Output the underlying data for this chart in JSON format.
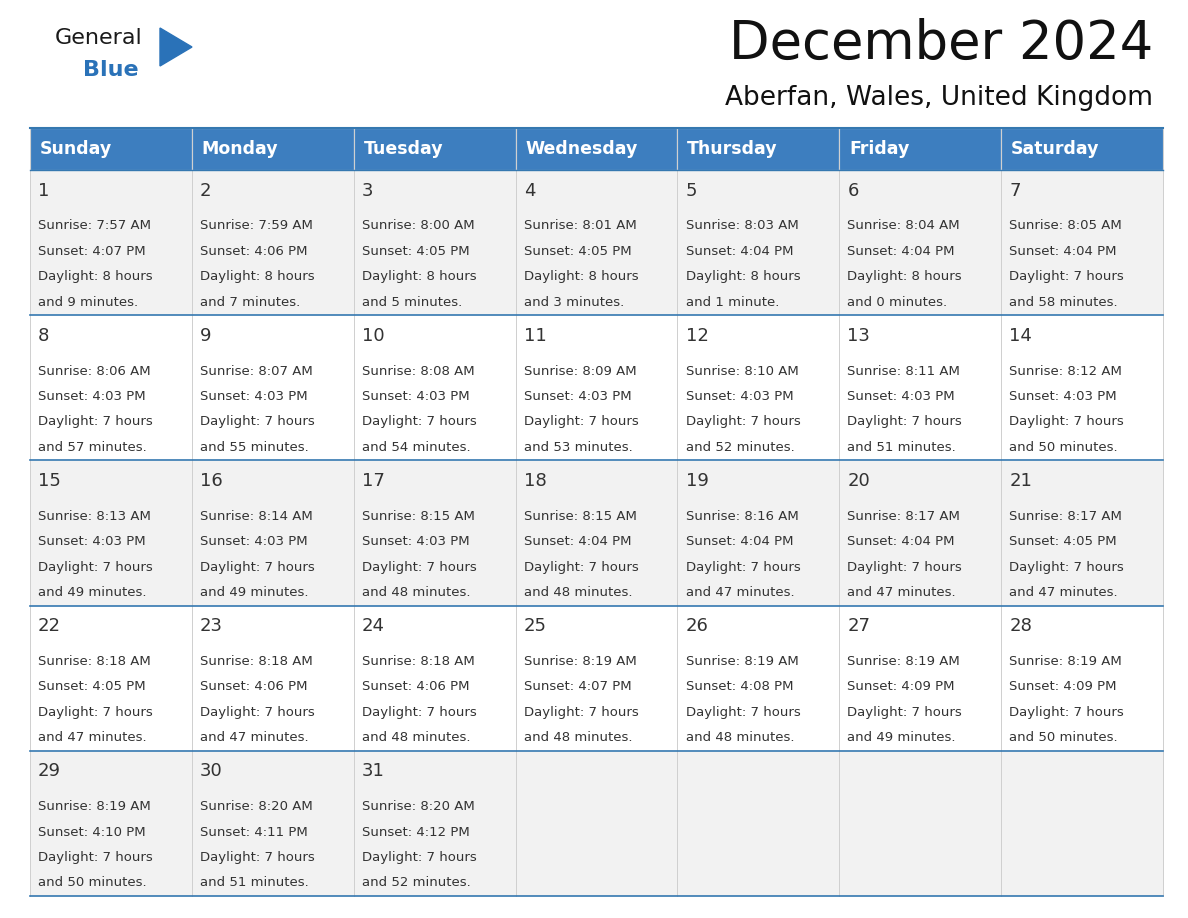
{
  "title": "December 2024",
  "subtitle": "Aberfan, Wales, United Kingdom",
  "header_color": "#3d7ebf",
  "header_text_color": "#ffffff",
  "row_bg_odd": "#f2f2f2",
  "row_bg_even": "#ffffff",
  "text_color": "#333333",
  "divider_color": "#3578b0",
  "day_headers": [
    "Sunday",
    "Monday",
    "Tuesday",
    "Wednesday",
    "Thursday",
    "Friday",
    "Saturday"
  ],
  "days": [
    {
      "date": 1,
      "col": 0,
      "row": 0,
      "sunrise": "7:57 AM",
      "sunset": "4:07 PM",
      "daylight_line1": "Daylight: 8 hours",
      "daylight_line2": "and 9 minutes."
    },
    {
      "date": 2,
      "col": 1,
      "row": 0,
      "sunrise": "7:59 AM",
      "sunset": "4:06 PM",
      "daylight_line1": "Daylight: 8 hours",
      "daylight_line2": "and 7 minutes."
    },
    {
      "date": 3,
      "col": 2,
      "row": 0,
      "sunrise": "8:00 AM",
      "sunset": "4:05 PM",
      "daylight_line1": "Daylight: 8 hours",
      "daylight_line2": "and 5 minutes."
    },
    {
      "date": 4,
      "col": 3,
      "row": 0,
      "sunrise": "8:01 AM",
      "sunset": "4:05 PM",
      "daylight_line1": "Daylight: 8 hours",
      "daylight_line2": "and 3 minutes."
    },
    {
      "date": 5,
      "col": 4,
      "row": 0,
      "sunrise": "8:03 AM",
      "sunset": "4:04 PM",
      "daylight_line1": "Daylight: 8 hours",
      "daylight_line2": "and 1 minute."
    },
    {
      "date": 6,
      "col": 5,
      "row": 0,
      "sunrise": "8:04 AM",
      "sunset": "4:04 PM",
      "daylight_line1": "Daylight: 8 hours",
      "daylight_line2": "and 0 minutes."
    },
    {
      "date": 7,
      "col": 6,
      "row": 0,
      "sunrise": "8:05 AM",
      "sunset": "4:04 PM",
      "daylight_line1": "Daylight: 7 hours",
      "daylight_line2": "and 58 minutes."
    },
    {
      "date": 8,
      "col": 0,
      "row": 1,
      "sunrise": "8:06 AM",
      "sunset": "4:03 PM",
      "daylight_line1": "Daylight: 7 hours",
      "daylight_line2": "and 57 minutes."
    },
    {
      "date": 9,
      "col": 1,
      "row": 1,
      "sunrise": "8:07 AM",
      "sunset": "4:03 PM",
      "daylight_line1": "Daylight: 7 hours",
      "daylight_line2": "and 55 minutes."
    },
    {
      "date": 10,
      "col": 2,
      "row": 1,
      "sunrise": "8:08 AM",
      "sunset": "4:03 PM",
      "daylight_line1": "Daylight: 7 hours",
      "daylight_line2": "and 54 minutes."
    },
    {
      "date": 11,
      "col": 3,
      "row": 1,
      "sunrise": "8:09 AM",
      "sunset": "4:03 PM",
      "daylight_line1": "Daylight: 7 hours",
      "daylight_line2": "and 53 minutes."
    },
    {
      "date": 12,
      "col": 4,
      "row": 1,
      "sunrise": "8:10 AM",
      "sunset": "4:03 PM",
      "daylight_line1": "Daylight: 7 hours",
      "daylight_line2": "and 52 minutes."
    },
    {
      "date": 13,
      "col": 5,
      "row": 1,
      "sunrise": "8:11 AM",
      "sunset": "4:03 PM",
      "daylight_line1": "Daylight: 7 hours",
      "daylight_line2": "and 51 minutes."
    },
    {
      "date": 14,
      "col": 6,
      "row": 1,
      "sunrise": "8:12 AM",
      "sunset": "4:03 PM",
      "daylight_line1": "Daylight: 7 hours",
      "daylight_line2": "and 50 minutes."
    },
    {
      "date": 15,
      "col": 0,
      "row": 2,
      "sunrise": "8:13 AM",
      "sunset": "4:03 PM",
      "daylight_line1": "Daylight: 7 hours",
      "daylight_line2": "and 49 minutes."
    },
    {
      "date": 16,
      "col": 1,
      "row": 2,
      "sunrise": "8:14 AM",
      "sunset": "4:03 PM",
      "daylight_line1": "Daylight: 7 hours",
      "daylight_line2": "and 49 minutes."
    },
    {
      "date": 17,
      "col": 2,
      "row": 2,
      "sunrise": "8:15 AM",
      "sunset": "4:03 PM",
      "daylight_line1": "Daylight: 7 hours",
      "daylight_line2": "and 48 minutes."
    },
    {
      "date": 18,
      "col": 3,
      "row": 2,
      "sunrise": "8:15 AM",
      "sunset": "4:04 PM",
      "daylight_line1": "Daylight: 7 hours",
      "daylight_line2": "and 48 minutes."
    },
    {
      "date": 19,
      "col": 4,
      "row": 2,
      "sunrise": "8:16 AM",
      "sunset": "4:04 PM",
      "daylight_line1": "Daylight: 7 hours",
      "daylight_line2": "and 47 minutes."
    },
    {
      "date": 20,
      "col": 5,
      "row": 2,
      "sunrise": "8:17 AM",
      "sunset": "4:04 PM",
      "daylight_line1": "Daylight: 7 hours",
      "daylight_line2": "and 47 minutes."
    },
    {
      "date": 21,
      "col": 6,
      "row": 2,
      "sunrise": "8:17 AM",
      "sunset": "4:05 PM",
      "daylight_line1": "Daylight: 7 hours",
      "daylight_line2": "and 47 minutes."
    },
    {
      "date": 22,
      "col": 0,
      "row": 3,
      "sunrise": "8:18 AM",
      "sunset": "4:05 PM",
      "daylight_line1": "Daylight: 7 hours",
      "daylight_line2": "and 47 minutes."
    },
    {
      "date": 23,
      "col": 1,
      "row": 3,
      "sunrise": "8:18 AM",
      "sunset": "4:06 PM",
      "daylight_line1": "Daylight: 7 hours",
      "daylight_line2": "and 47 minutes."
    },
    {
      "date": 24,
      "col": 2,
      "row": 3,
      "sunrise": "8:18 AM",
      "sunset": "4:06 PM",
      "daylight_line1": "Daylight: 7 hours",
      "daylight_line2": "and 48 minutes."
    },
    {
      "date": 25,
      "col": 3,
      "row": 3,
      "sunrise": "8:19 AM",
      "sunset": "4:07 PM",
      "daylight_line1": "Daylight: 7 hours",
      "daylight_line2": "and 48 minutes."
    },
    {
      "date": 26,
      "col": 4,
      "row": 3,
      "sunrise": "8:19 AM",
      "sunset": "4:08 PM",
      "daylight_line1": "Daylight: 7 hours",
      "daylight_line2": "and 48 minutes."
    },
    {
      "date": 27,
      "col": 5,
      "row": 3,
      "sunrise": "8:19 AM",
      "sunset": "4:09 PM",
      "daylight_line1": "Daylight: 7 hours",
      "daylight_line2": "and 49 minutes."
    },
    {
      "date": 28,
      "col": 6,
      "row": 3,
      "sunrise": "8:19 AM",
      "sunset": "4:09 PM",
      "daylight_line1": "Daylight: 7 hours",
      "daylight_line2": "and 50 minutes."
    },
    {
      "date": 29,
      "col": 0,
      "row": 4,
      "sunrise": "8:19 AM",
      "sunset": "4:10 PM",
      "daylight_line1": "Daylight: 7 hours",
      "daylight_line2": "and 50 minutes."
    },
    {
      "date": 30,
      "col": 1,
      "row": 4,
      "sunrise": "8:20 AM",
      "sunset": "4:11 PM",
      "daylight_line1": "Daylight: 7 hours",
      "daylight_line2": "and 51 minutes."
    },
    {
      "date": 31,
      "col": 2,
      "row": 4,
      "sunrise": "8:20 AM",
      "sunset": "4:12 PM",
      "daylight_line1": "Daylight: 7 hours",
      "daylight_line2": "and 52 minutes."
    }
  ],
  "logo_color_general": "#1a1a1a",
  "logo_color_blue": "#2a72b8",
  "title_fontsize": 38,
  "subtitle_fontsize": 19,
  "header_fontsize": 12.5,
  "day_number_fontsize": 13,
  "cell_text_fontsize": 9.5
}
